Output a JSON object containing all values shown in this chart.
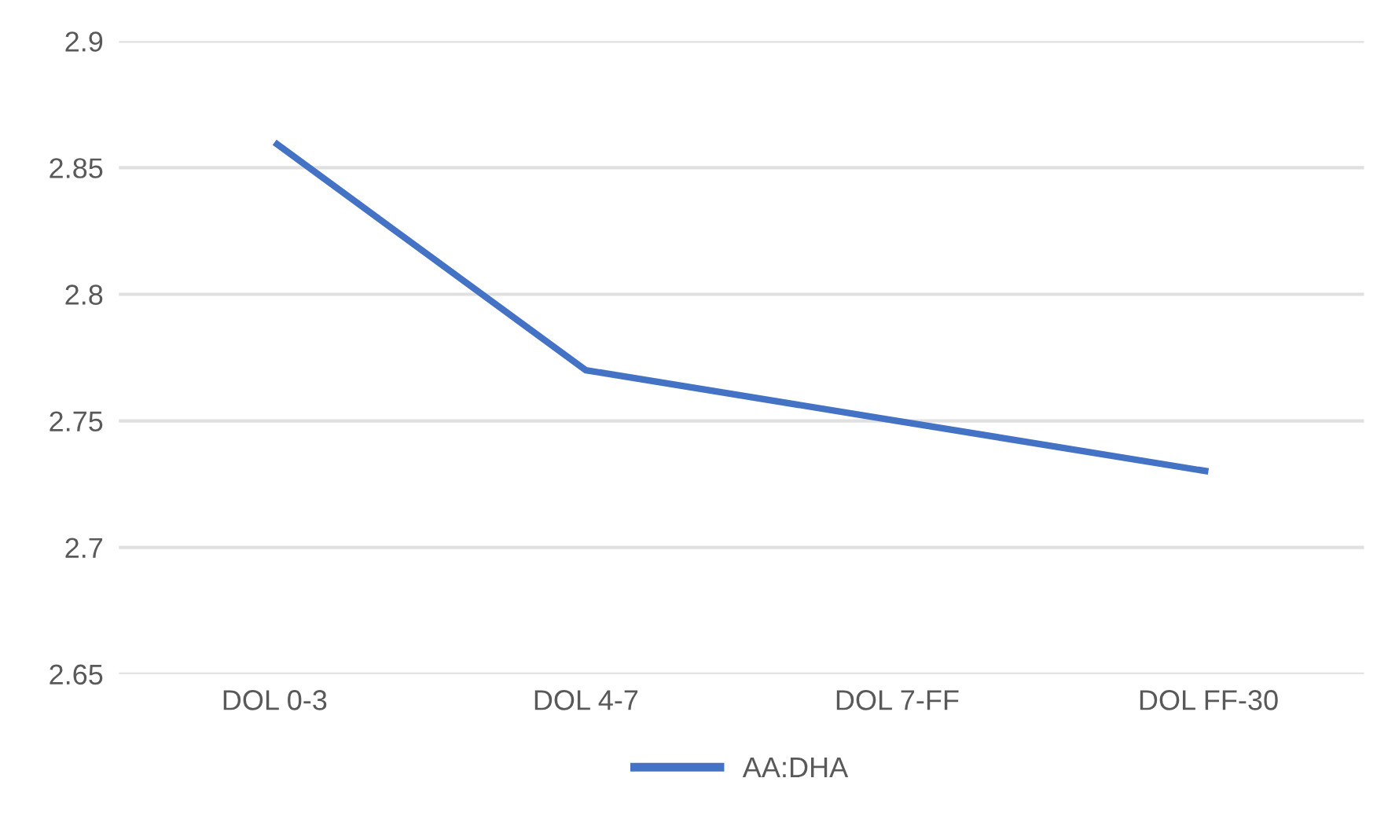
{
  "chart_data": {
    "type": "line",
    "categories": [
      "DOL 0-3",
      "DOL 4-7",
      "DOL 7-FF",
      "DOL FF-30"
    ],
    "series": [
      {
        "name": "AA:DHA",
        "color": "#4472c4",
        "values": [
          2.86,
          2.77,
          2.75,
          2.73
        ]
      }
    ],
    "ylim": [
      2.65,
      2.9
    ],
    "yticks": [
      2.65,
      2.7,
      2.75,
      2.8,
      2.85,
      2.9
    ],
    "grid": "y",
    "legend": "bottom",
    "marker": "none"
  }
}
